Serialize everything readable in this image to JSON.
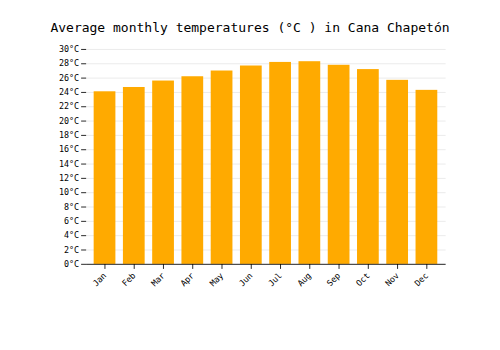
{
  "chart_data": {
    "type": "bar",
    "title": "Average monthly temperatures (°C ) in Cana Chapetón",
    "categories": [
      "Jan",
      "Feb",
      "Mar",
      "Apr",
      "May",
      "Jun",
      "Jul",
      "Aug",
      "Sep",
      "Oct",
      "Nov",
      "Dec"
    ],
    "values": [
      24.1,
      24.7,
      25.6,
      26.2,
      27.0,
      27.7,
      28.2,
      28.3,
      27.8,
      27.2,
      25.7,
      24.3
    ],
    "color": "#FFAA00",
    "ylim": [
      0,
      30
    ],
    "yticks": [
      {
        "value": 0,
        "label": "0°C"
      },
      {
        "value": 2,
        "label": "2°C"
      },
      {
        "value": 4,
        "label": "4°C"
      },
      {
        "value": 6,
        "label": "6°C"
      },
      {
        "value": 8,
        "label": "8°C"
      },
      {
        "value": 10,
        "label": "10°C"
      },
      {
        "value": 12,
        "label": "12°C"
      },
      {
        "value": 14,
        "label": "14°C"
      },
      {
        "value": 16,
        "label": "16°C"
      },
      {
        "value": 18,
        "label": "18°C"
      },
      {
        "value": 20,
        "label": "20°C"
      },
      {
        "value": 22,
        "label": "22°C"
      },
      {
        "value": 24,
        "label": "24°C"
      },
      {
        "value": 26,
        "label": "26°C"
      },
      {
        "value": 28,
        "label": "28°C"
      },
      {
        "value": 30,
        "label": "30°C"
      }
    ],
    "grid": true
  }
}
